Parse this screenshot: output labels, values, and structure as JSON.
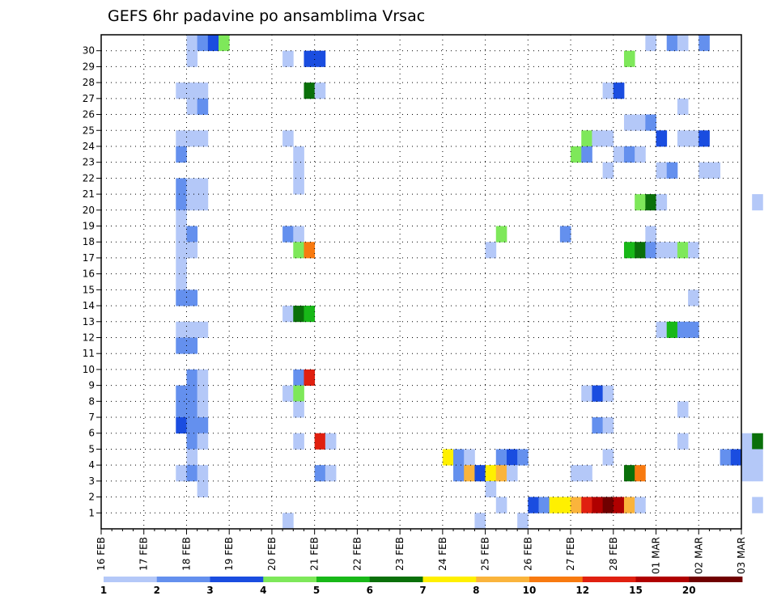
{
  "chart_data": {
    "type": "heatmap",
    "title": "GEFS 6hr padavine po ansamblima Vrsac",
    "xlabel": "",
    "ylabel": "",
    "y_ticks": [
      "1",
      "2",
      "3",
      "4",
      "5",
      "6",
      "7",
      "8",
      "9",
      "10",
      "11",
      "12",
      "13",
      "14",
      "15",
      "16",
      "17",
      "18",
      "19",
      "20",
      "21",
      "22",
      "23",
      "24",
      "25",
      "26",
      "27",
      "28",
      "29",
      "30"
    ],
    "x_ticks": [
      "16 FEB",
      "17 FEB",
      "18 FEB",
      "19 FEB",
      "20 FEB",
      "21 FEB",
      "22 FEB",
      "23 FEB",
      "24 FEB",
      "25 FEB",
      "26 FEB",
      "27 FEB",
      "28 FEB",
      "01 MAR",
      "02 MAR",
      "03 MAR"
    ],
    "x_range": [
      "16 FEB 00z",
      "03 MAR 00z"
    ],
    "time_step_hours": 6,
    "y_range": [
      0,
      30
    ],
    "grid": true,
    "colorbar": {
      "placement": "bottom",
      "tick_labels": [
        "1",
        "2",
        "3",
        "4",
        "5",
        "6",
        "7",
        "8",
        "10",
        "12",
        "15",
        "20"
      ],
      "colors": [
        "#b4c8f8",
        "#6490ee",
        "#1a4de0",
        "#7ee85a",
        "#18b818",
        "#0a700a",
        "#fff000",
        "#fab43c",
        "#f87a10",
        "#e02010",
        "#b00000",
        "#700000"
      ]
    },
    "level_colors": [
      "#ffffff",
      "#b4c8f8",
      "#6490ee",
      "#1a4de0",
      "#7ee85a",
      "#18b818",
      "#0a700a",
      "#fff000",
      "#fab43c",
      "#f87a10",
      "#e02010",
      "#b00000",
      "#700000"
    ],
    "cells": [
      [
        30,
        8,
        1
      ],
      [
        30,
        9,
        2
      ],
      [
        30,
        10,
        3
      ],
      [
        30,
        11,
        4
      ],
      [
        30,
        51,
        1
      ],
      [
        30,
        53,
        2
      ],
      [
        30,
        54,
        1
      ],
      [
        30,
        56,
        2
      ],
      [
        29,
        8,
        1
      ],
      [
        29,
        17,
        1
      ],
      [
        29,
        19,
        3
      ],
      [
        29,
        20,
        3
      ],
      [
        29,
        49,
        4
      ],
      [
        27,
        7,
        1
      ],
      [
        27,
        8,
        1
      ],
      [
        27,
        9,
        1
      ],
      [
        27,
        19,
        6
      ],
      [
        27,
        20,
        1
      ],
      [
        27,
        47,
        1
      ],
      [
        27,
        48,
        3
      ],
      [
        26,
        8,
        1
      ],
      [
        26,
        9,
        2
      ],
      [
        26,
        54,
        1
      ],
      [
        25,
        49,
        1
      ],
      [
        25,
        50,
        1
      ],
      [
        25,
        51,
        2
      ],
      [
        24,
        7,
        1
      ],
      [
        24,
        8,
        1
      ],
      [
        24,
        9,
        1
      ],
      [
        24,
        17,
        1
      ],
      [
        24,
        45,
        4
      ],
      [
        24,
        46,
        1
      ],
      [
        24,
        47,
        1
      ],
      [
        24,
        52,
        3
      ],
      [
        24,
        54,
        1
      ],
      [
        24,
        55,
        1
      ],
      [
        24,
        56,
        3
      ],
      [
        23,
        7,
        2
      ],
      [
        23,
        18,
        1
      ],
      [
        23,
        44,
        4
      ],
      [
        23,
        45,
        2
      ],
      [
        23,
        48,
        1
      ],
      [
        23,
        49,
        2
      ],
      [
        23,
        50,
        1
      ],
      [
        22,
        18,
        1
      ],
      [
        22,
        47,
        1
      ],
      [
        22,
        52,
        1
      ],
      [
        22,
        53,
        2
      ],
      [
        22,
        56,
        1
      ],
      [
        22,
        57,
        1
      ],
      [
        21,
        18,
        1
      ],
      [
        21,
        7,
        2
      ],
      [
        21,
        8,
        1
      ],
      [
        21,
        9,
        1
      ],
      [
        20,
        7,
        2
      ],
      [
        20,
        8,
        1
      ],
      [
        20,
        9,
        1
      ],
      [
        20,
        50,
        4
      ],
      [
        20,
        51,
        6
      ],
      [
        20,
        52,
        1
      ],
      [
        20,
        61,
        1
      ],
      [
        19,
        7,
        1
      ],
      [
        18,
        7,
        1
      ],
      [
        18,
        8,
        2
      ],
      [
        18,
        17,
        2
      ],
      [
        18,
        18,
        1
      ],
      [
        18,
        37,
        4
      ],
      [
        18,
        43,
        2
      ],
      [
        18,
        51,
        1
      ],
      [
        17,
        7,
        1
      ],
      [
        17,
        8,
        1
      ],
      [
        17,
        18,
        4
      ],
      [
        17,
        19,
        9
      ],
      [
        17,
        36,
        1
      ],
      [
        17,
        49,
        5
      ],
      [
        17,
        50,
        6
      ],
      [
        17,
        51,
        2
      ],
      [
        17,
        52,
        1
      ],
      [
        17,
        53,
        1
      ],
      [
        17,
        54,
        4
      ],
      [
        17,
        55,
        1
      ],
      [
        16,
        7,
        1
      ],
      [
        15,
        7,
        1
      ],
      [
        14,
        7,
        2
      ],
      [
        14,
        8,
        2
      ],
      [
        14,
        55,
        1
      ],
      [
        13,
        17,
        1
      ],
      [
        13,
        18,
        6
      ],
      [
        13,
        19,
        5
      ],
      [
        12,
        7,
        1
      ],
      [
        12,
        8,
        1
      ],
      [
        12,
        9,
        1
      ],
      [
        12,
        52,
        1
      ],
      [
        12,
        53,
        5
      ],
      [
        12,
        54,
        2
      ],
      [
        12,
        55,
        2
      ],
      [
        11,
        7,
        2
      ],
      [
        11,
        8,
        2
      ],
      [
        9,
        8,
        2
      ],
      [
        9,
        9,
        1
      ],
      [
        9,
        18,
        2
      ],
      [
        9,
        19,
        10
      ],
      [
        8,
        7,
        2
      ],
      [
        8,
        8,
        2
      ],
      [
        8,
        9,
        1
      ],
      [
        8,
        17,
        1
      ],
      [
        8,
        18,
        4
      ],
      [
        8,
        45,
        1
      ],
      [
        8,
        46,
        3
      ],
      [
        8,
        47,
        1
      ],
      [
        7,
        7,
        2
      ],
      [
        7,
        8,
        2
      ],
      [
        7,
        9,
        1
      ],
      [
        7,
        18,
        1
      ],
      [
        7,
        54,
        1
      ],
      [
        6,
        7,
        3
      ],
      [
        6,
        8,
        2
      ],
      [
        6,
        9,
        2
      ],
      [
        6,
        46,
        2
      ],
      [
        6,
        47,
        1
      ],
      [
        5,
        8,
        2
      ],
      [
        5,
        9,
        1
      ],
      [
        5,
        18,
        1
      ],
      [
        5,
        20,
        10
      ],
      [
        5,
        21,
        1
      ],
      [
        5,
        54,
        1
      ],
      [
        5,
        60,
        1
      ],
      [
        5,
        61,
        6
      ],
      [
        4,
        8,
        1
      ],
      [
        4,
        32,
        7
      ],
      [
        4,
        33,
        2
      ],
      [
        4,
        34,
        1
      ],
      [
        4,
        37,
        2
      ],
      [
        4,
        38,
        3
      ],
      [
        4,
        39,
        2
      ],
      [
        4,
        47,
        1
      ],
      [
        4,
        58,
        2
      ],
      [
        4,
        59,
        3
      ],
      [
        4,
        60,
        1
      ],
      [
        4,
        61,
        1
      ],
      [
        3,
        7,
        1
      ],
      [
        3,
        8,
        2
      ],
      [
        3,
        9,
        1
      ],
      [
        3,
        20,
        2
      ],
      [
        3,
        21,
        1
      ],
      [
        3,
        33,
        2
      ],
      [
        3,
        34,
        8
      ],
      [
        3,
        35,
        3
      ],
      [
        3,
        36,
        7
      ],
      [
        3,
        37,
        8
      ],
      [
        3,
        38,
        1
      ],
      [
        3,
        44,
        1
      ],
      [
        3,
        45,
        1
      ],
      [
        3,
        49,
        6
      ],
      [
        3,
        50,
        9
      ],
      [
        3,
        60,
        1
      ],
      [
        3,
        61,
        1
      ],
      [
        2,
        9,
        1
      ],
      [
        2,
        36,
        1
      ],
      [
        1,
        37,
        1
      ],
      [
        1,
        40,
        3
      ],
      [
        1,
        41,
        2
      ],
      [
        1,
        42,
        7
      ],
      [
        1,
        43,
        7
      ],
      [
        1,
        44,
        8
      ],
      [
        1,
        45,
        10
      ],
      [
        1,
        46,
        11
      ],
      [
        1,
        47,
        12
      ],
      [
        1,
        48,
        11
      ],
      [
        1,
        49,
        8
      ],
      [
        1,
        50,
        1
      ],
      [
        1,
        61,
        1
      ],
      [
        0,
        17,
        1
      ],
      [
        0,
        35,
        1
      ],
      [
        0,
        39,
        1
      ]
    ]
  }
}
